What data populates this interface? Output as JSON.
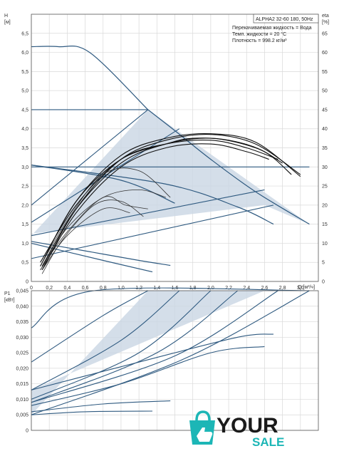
{
  "header": {
    "title": "ALPHA2 32-60 180, 50Hz",
    "lines": [
      "Перекачиваемая жидкость = Вода",
      "Темп. жидкости = 20 °C",
      "Плотность = 998.2 кг/м³"
    ]
  },
  "logo": {
    "word1": "YOUR",
    "word2": "SALE",
    "color": "#1cb6b6",
    "dark": "#1a1a1a",
    "icon": "shopping-bag-hand-icon"
  },
  "colors": {
    "curve": "#2f5a80",
    "fill": "#c9d6e3",
    "black": "#111111",
    "gray": "#666666"
  },
  "chart_data": [
    {
      "type": "line",
      "name": "head-and-efficiency",
      "xlabel": "Q [м³/ч]",
      "ylabel": "H\n[м]",
      "y2label": "eta\n[%]",
      "xlim": [
        0,
        3.2
      ],
      "ylim": [
        0,
        7
      ],
      "y2lim": [
        0,
        70
      ],
      "xticks": [
        "0",
        "0,2",
        "0,4",
        "0,6",
        "0,8",
        "1,0",
        "1,2",
        "1,4",
        "1,6",
        "1,8",
        "2,0",
        "2,2",
        "2,4",
        "2,6",
        "2,8",
        "3,0"
      ],
      "yticks": [
        "0",
        "0,5",
        "1,0",
        "1,5",
        "2,0",
        "2,5",
        "3,0",
        "3,5",
        "4,0",
        "4,5",
        "5,0",
        "5,5",
        "6,0",
        "6,5"
      ],
      "y2ticks": [
        "0",
        "5",
        "10",
        "15",
        "20",
        "25",
        "30",
        "35",
        "40",
        "45",
        "50",
        "55",
        "60",
        "65"
      ],
      "range_region": [
        [
          0,
          1.2
        ],
        [
          1.3,
          4.5
        ],
        [
          3.1,
          1.5
        ],
        [
          2.6,
          2.0
        ],
        [
          0,
          1.25
        ]
      ],
      "qh_curves": [
        {
          "x": [
            0,
            0.3,
            0.65,
            1.3
          ],
          "y": [
            6.15,
            6.15,
            6.0,
            4.5
          ]
        },
        {
          "x": [
            1.3,
            1.6,
            2.0,
            2.5,
            3.1
          ],
          "y": [
            4.5,
            3.95,
            3.2,
            2.35,
            1.5
          ]
        },
        {
          "x": [
            0,
            0.6,
            1.2,
            1.55
          ],
          "y": [
            1.05,
            0.8,
            0.55,
            0.42
          ]
        },
        {
          "x": [
            0,
            0.8,
            1.35
          ],
          "y": [
            1.0,
            0.55,
            0.25
          ]
        },
        {
          "x": [
            0,
            1.0,
            1.6
          ],
          "y": [
            3.05,
            2.65,
            2.05
          ]
        },
        {
          "x": [
            0,
            1.5,
            2.3,
            2.7
          ],
          "y": [
            3.05,
            2.55,
            1.95,
            1.5
          ]
        }
      ],
      "const_lines": [
        {
          "x": [
            0,
            1.3
          ],
          "y": [
            4.5,
            4.5
          ]
        },
        {
          "x": [
            0,
            3.1
          ],
          "y": [
            3.0,
            3.0
          ]
        },
        {
          "x": [
            0,
            1.3
          ],
          "y": [
            2.0,
            4.5
          ]
        },
        {
          "x": [
            0,
            1.65
          ],
          "y": [
            1.55,
            4.0
          ]
        },
        {
          "x": [
            0,
            2.6
          ],
          "y": [
            1.2,
            2.4
          ]
        },
        {
          "x": [
            0,
            2.7
          ],
          "y": [
            0.6,
            2.0
          ]
        }
      ],
      "eta_curves": [
        {
          "x": [
            0.12,
            0.5,
            1.0,
            1.5,
            2.0,
            2.5,
            3.0
          ],
          "y": [
            3,
            19,
            32,
            37,
            38.5,
            36,
            28
          ]
        },
        {
          "x": [
            0.1,
            0.5,
            1.0,
            1.5,
            2.0,
            2.5,
            3.0
          ],
          "y": [
            4,
            21,
            33,
            37.5,
            38.7,
            36.5,
            27.5
          ]
        },
        {
          "x": [
            0.12,
            0.5,
            1.0,
            1.5,
            2.0,
            2.5,
            2.8
          ],
          "y": [
            4,
            19,
            31,
            36,
            37.5,
            35,
            31
          ]
        },
        {
          "x": [
            0.1,
            0.5,
            1.0,
            1.5,
            2.0,
            2.4,
            2.75
          ],
          "y": [
            5,
            20,
            32,
            36,
            37,
            35,
            32
          ]
        },
        {
          "x": [
            0.12,
            0.5,
            1.0,
            1.5,
            2.0,
            2.4,
            2.65
          ],
          "y": [
            3,
            18,
            30,
            35,
            36,
            34,
            32
          ]
        },
        {
          "x": [
            0.1,
            0.5,
            1.0,
            1.5,
            1.8,
            2.2,
            2.6,
            2.9
          ],
          "y": [
            4,
            21,
            32,
            36,
            37.5,
            37,
            34,
            28
          ]
        },
        {
          "x": [
            0.1,
            0.4,
            0.8,
            1.2,
            1.55
          ],
          "y": [
            4,
            16,
            28,
            29,
            22
          ]
        },
        {
          "x": [
            0.1,
            0.4,
            0.8,
            1.2,
            1.5
          ],
          "y": [
            3,
            14,
            22,
            24,
            22
          ]
        },
        {
          "x": [
            0.1,
            0.4,
            0.8,
            1.05,
            1.3
          ],
          "y": [
            3,
            13,
            22,
            20,
            19
          ]
        },
        {
          "x": [
            0.12,
            0.35,
            0.7,
            1.0,
            1.25
          ],
          "y": [
            2,
            11,
            20,
            21,
            17
          ]
        },
        {
          "x": [
            0.12,
            0.4,
            0.8,
            1.1
          ],
          "y": [
            3,
            12,
            19,
            18
          ]
        }
      ]
    },
    {
      "type": "line",
      "name": "power",
      "xlabel": "",
      "ylabel": "P1\n[кВт]",
      "xlim": [
        0,
        3.2
      ],
      "ylim": [
        0,
        0.045
      ],
      "yticks": [
        "0",
        "0,005",
        "0,010",
        "0,015",
        "0,020",
        "0,025",
        "0,030",
        "0,035",
        "0,040",
        "0,045"
      ],
      "range_region": [
        [
          0,
          0.005
        ],
        [
          1.3,
          0.045
        ],
        [
          3.1,
          0.045
        ],
        [
          2.6,
          0.045
        ],
        [
          0,
          0.013
        ]
      ],
      "p_curves": [
        {
          "x": [
            0,
            0.7,
            3.1
          ],
          "y": [
            0.033,
            0.045,
            0.045
          ]
        },
        {
          "x": [
            0,
            0.8,
            1.3
          ],
          "y": [
            0.022,
            0.037,
            0.045
          ]
        },
        {
          "x": [
            0,
            1.0,
            1.65
          ],
          "y": [
            0.013,
            0.029,
            0.045
          ]
        },
        {
          "x": [
            0,
            1.2,
            2.0
          ],
          "y": [
            0.01,
            0.025,
            0.045
          ]
        },
        {
          "x": [
            0,
            1.4,
            2.3
          ],
          "y": [
            0.009,
            0.025,
            0.045
          ]
        },
        {
          "x": [
            0,
            1.6,
            2.75
          ],
          "y": [
            0.009,
            0.024,
            0.045
          ]
        },
        {
          "x": [
            0,
            1.7,
            3.1
          ],
          "y": [
            0.005,
            0.023,
            0.045
          ]
        },
        {
          "x": [
            0,
            1.2,
            2.3,
            2.7
          ],
          "y": [
            0.013,
            0.022,
            0.03,
            0.031
          ]
        },
        {
          "x": [
            0,
            1.0,
            2.0,
            2.6
          ],
          "y": [
            0.008,
            0.015,
            0.025,
            0.027
          ]
        },
        {
          "x": [
            0,
            0.8,
            1.55
          ],
          "y": [
            0.006,
            0.0085,
            0.0095
          ]
        },
        {
          "x": [
            0,
            0.6,
            1.35
          ],
          "y": [
            0.005,
            0.006,
            0.0062
          ]
        }
      ]
    }
  ]
}
